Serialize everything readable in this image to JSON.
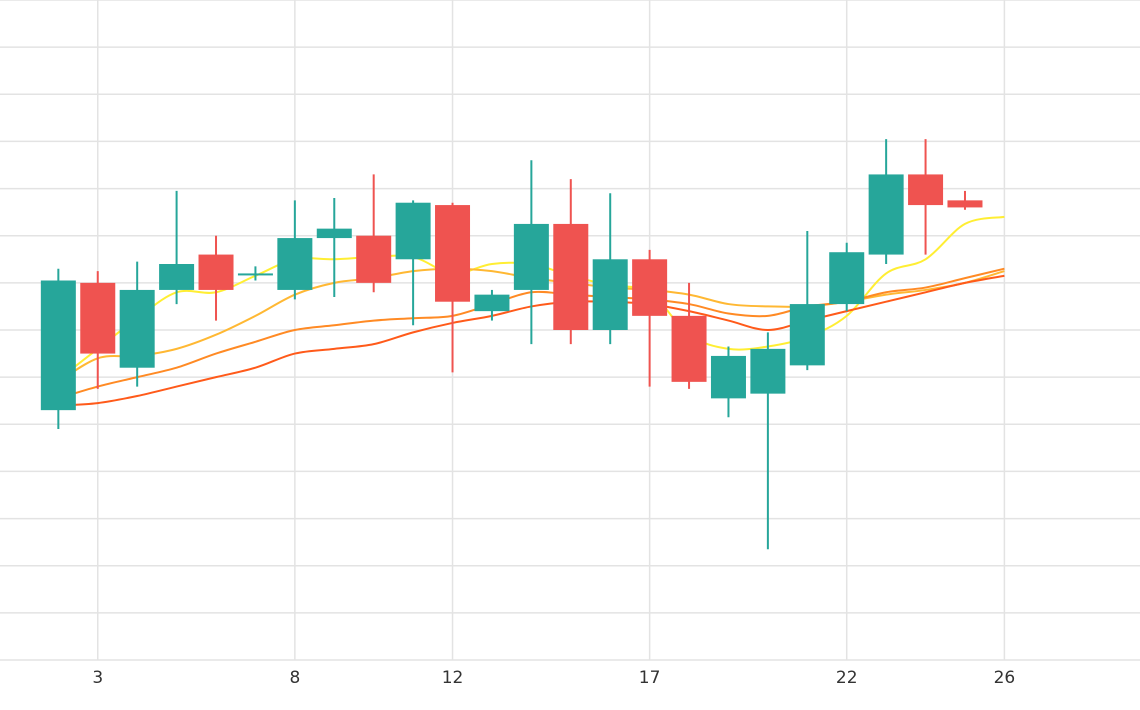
{
  "chart_data": {
    "type": "candlestick",
    "title": "",
    "xlabel": "",
    "ylabel": "",
    "x_ticks": [
      3,
      8,
      12,
      17,
      22,
      26
    ],
    "xlim": [
      0.52,
      29.44
    ],
    "ylim": [
      0,
      14
    ],
    "grid": true,
    "colors": {
      "up": "#26a69a",
      "down": "#ef5350",
      "grid": "#e3e3e3",
      "ma": [
        "#ffee33",
        "#ffb833",
        "#ff8a24",
        "#ff5a1a"
      ]
    },
    "candles": [
      {
        "x": 2,
        "open": 5.3,
        "close": 8.05,
        "high": 8.3,
        "low": 4.9
      },
      {
        "x": 3,
        "open": 8.0,
        "close": 6.5,
        "high": 8.25,
        "low": 5.75
      },
      {
        "x": 4,
        "open": 6.2,
        "close": 7.85,
        "high": 8.45,
        "low": 5.8
      },
      {
        "x": 5,
        "open": 7.85,
        "close": 8.4,
        "high": 9.95,
        "low": 7.55
      },
      {
        "x": 6,
        "open": 8.6,
        "close": 7.85,
        "high": 9.0,
        "low": 7.2
      },
      {
        "x": 7,
        "open": 8.2,
        "close": 8.2,
        "high": 8.35,
        "low": 8.05
      },
      {
        "x": 8,
        "open": 7.85,
        "close": 8.95,
        "high": 9.75,
        "low": 7.65
      },
      {
        "x": 9,
        "open": 8.95,
        "close": 9.15,
        "high": 9.8,
        "low": 7.7
      },
      {
        "x": 10,
        "open": 9.0,
        "close": 8.0,
        "high": 10.3,
        "low": 7.8
      },
      {
        "x": 11,
        "open": 8.5,
        "close": 9.7,
        "high": 9.75,
        "low": 7.1
      },
      {
        "x": 12,
        "open": 9.65,
        "close": 7.6,
        "high": 9.7,
        "low": 6.1
      },
      {
        "x": 13,
        "open": 7.4,
        "close": 7.75,
        "high": 7.85,
        "low": 7.2
      },
      {
        "x": 14,
        "open": 7.85,
        "close": 9.25,
        "high": 10.6,
        "low": 6.7
      },
      {
        "x": 15,
        "open": 9.25,
        "close": 7.0,
        "high": 10.2,
        "low": 6.7
      },
      {
        "x": 16,
        "open": 7.0,
        "close": 8.5,
        "high": 9.9,
        "low": 6.7
      },
      {
        "x": 17,
        "open": 8.5,
        "close": 7.3,
        "high": 8.7,
        "low": 5.8
      },
      {
        "x": 18,
        "open": 7.3,
        "close": 5.9,
        "high": 8.0,
        "low": 5.75
      },
      {
        "x": 19,
        "open": 5.55,
        "close": 6.45,
        "high": 6.65,
        "low": 5.15
      },
      {
        "x": 20,
        "open": 5.65,
        "close": 6.6,
        "high": 6.95,
        "low": 2.35
      },
      {
        "x": 21,
        "open": 6.25,
        "close": 7.55,
        "high": 9.1,
        "low": 6.15
      },
      {
        "x": 22,
        "open": 7.55,
        "close": 8.65,
        "high": 8.85,
        "low": 7.4
      },
      {
        "x": 23,
        "open": 8.6,
        "close": 10.3,
        "high": 11.05,
        "low": 8.4
      },
      {
        "x": 24,
        "open": 10.3,
        "close": 9.65,
        "high": 11.05,
        "low": 8.6
      },
      {
        "x": 25,
        "open": 9.75,
        "close": 9.6,
        "high": 9.95,
        "low": 9.55
      }
    ],
    "moving_averages": [
      {
        "color": "#ffee33",
        "x": [
          2,
          3,
          4,
          5,
          6,
          7,
          8,
          9,
          10,
          11,
          12,
          13,
          14,
          15,
          16,
          17,
          18,
          19,
          20,
          21,
          22,
          23,
          24,
          25,
          26
        ],
        "values": [
          5.95,
          6.6,
          7.25,
          7.8,
          7.8,
          8.15,
          8.5,
          8.5,
          8.55,
          8.55,
          8.2,
          8.4,
          8.4,
          8.15,
          7.95,
          7.8,
          6.9,
          6.6,
          6.65,
          6.85,
          7.3,
          8.2,
          8.5,
          9.25,
          9.4
        ]
      },
      {
        "color": "#ffb833",
        "x": [
          2,
          3,
          4,
          5,
          6,
          7,
          8,
          9,
          10,
          11,
          12,
          13,
          14,
          15,
          16,
          17,
          18,
          19,
          20,
          21,
          22,
          23,
          24,
          25,
          26
        ],
        "values": [
          5.9,
          6.4,
          6.45,
          6.6,
          6.9,
          7.3,
          7.75,
          8.0,
          8.1,
          8.25,
          8.3,
          8.25,
          8.1,
          8.0,
          7.9,
          7.85,
          7.75,
          7.55,
          7.5,
          7.5,
          7.6,
          7.75,
          7.85,
          8.0,
          8.25
        ]
      },
      {
        "color": "#ff8a24",
        "x": [
          2,
          3,
          4,
          5,
          6,
          7,
          8,
          9,
          10,
          11,
          12,
          13,
          14,
          15,
          16,
          17,
          18,
          19,
          20,
          21,
          22,
          23,
          24,
          25,
          26
        ],
        "values": [
          5.55,
          5.8,
          6.0,
          6.2,
          6.5,
          6.75,
          7.0,
          7.1,
          7.2,
          7.25,
          7.3,
          7.55,
          7.8,
          7.75,
          7.7,
          7.65,
          7.55,
          7.35,
          7.3,
          7.5,
          7.6,
          7.8,
          7.9,
          8.1,
          8.3
        ]
      },
      {
        "color": "#ff5a1a",
        "x": [
          2,
          3,
          4,
          5,
          6,
          7,
          8,
          9,
          10,
          11,
          12,
          13,
          14,
          15,
          16,
          17,
          18,
          19,
          20,
          21,
          22,
          23,
          24,
          25,
          26
        ],
        "values": [
          5.4,
          5.45,
          5.6,
          5.8,
          6.0,
          6.2,
          6.5,
          6.6,
          6.7,
          6.95,
          7.15,
          7.3,
          7.5,
          7.6,
          7.6,
          7.55,
          7.4,
          7.2,
          7.0,
          7.2,
          7.4,
          7.6,
          7.8,
          8.0,
          8.15
        ]
      }
    ]
  }
}
